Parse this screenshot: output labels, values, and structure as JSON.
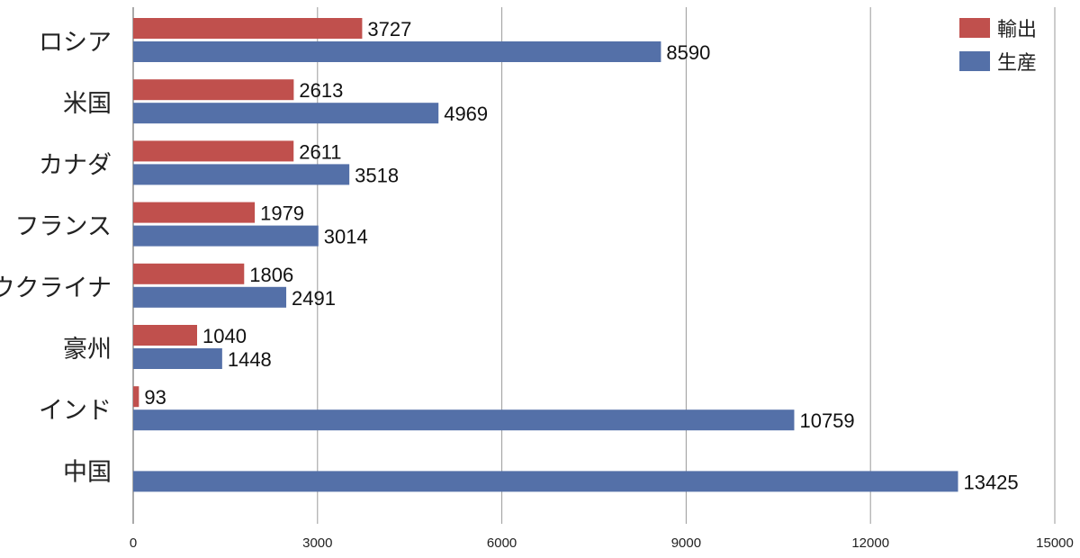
{
  "chart_data": {
    "type": "bar",
    "orientation": "horizontal",
    "categories": [
      "ロシア",
      "米国",
      "カナダ",
      "フランス",
      "ウクライナ",
      "豪州",
      "インド",
      "中国"
    ],
    "series": [
      {
        "name": "輸出",
        "color": "#c0504d",
        "values": [
          3727,
          2613,
          2611,
          1979,
          1806,
          1040,
          93,
          null
        ]
      },
      {
        "name": "生産",
        "color": "#5470a8",
        "values": [
          8590,
          4969,
          3518,
          3014,
          2491,
          1448,
          10759,
          13425
        ]
      }
    ],
    "xlim": [
      0,
      15000
    ],
    "xticks": [
      0,
      3000,
      6000,
      9000,
      12000,
      15000
    ],
    "grid": "vertical",
    "legend_position": "top-right"
  }
}
